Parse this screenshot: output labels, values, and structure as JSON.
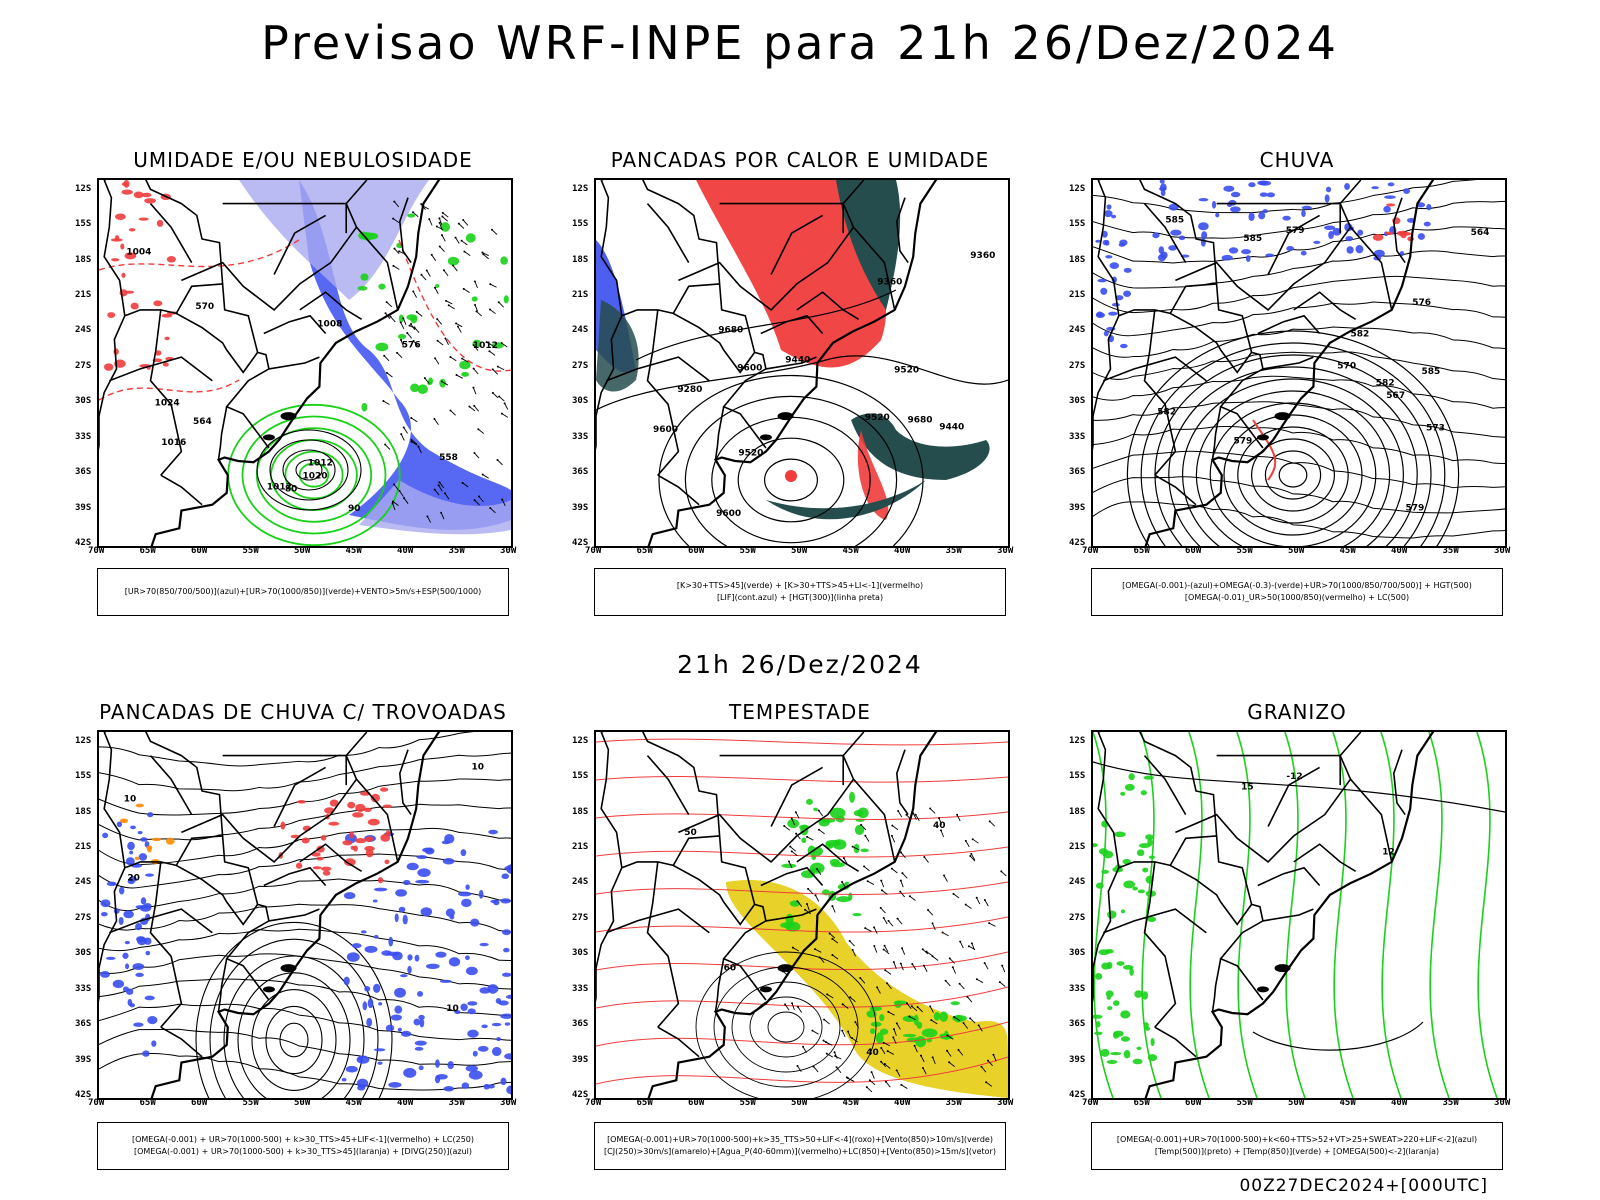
{
  "title": "Previsao WRF-INPE  para 21h 26/Dez/2024",
  "subtitle": "21h 26/Dez/2024",
  "footer": "00Z27DEC2024+[000UTC]",
  "lat_labels": [
    "12S",
    "15S",
    "18S",
    "21S",
    "24S",
    "27S",
    "30S",
    "33S",
    "36S",
    "39S",
    "42S"
  ],
  "lon_labels": [
    "70W",
    "65W",
    "60W",
    "55W",
    "50W",
    "45W",
    "40W",
    "35W",
    "30W"
  ],
  "colors": {
    "blue": "#3a4ef0",
    "green": "#1ad11a",
    "red": "#f03c3c",
    "darkteal": "#264d4d",
    "yellow": "#e8d22a",
    "lightblue": "#aaaaf0"
  },
  "panels": [
    {
      "title": "UMIDADE E/OU NEBULOSIDADE",
      "legend": [
        "[UR>70(850/700/500)](azul)+[UR>70(1000/850)](verde)+VENTO>5m/s+ESP(500/1000)"
      ],
      "contour_labels": [
        "1012",
        "1012",
        "1008",
        "1004",
        "1012",
        "1016",
        "1020",
        "1024",
        "576",
        "570",
        "564",
        "558",
        "80",
        "90"
      ]
    },
    {
      "title": "PANCADAS POR CALOR E UMIDADE",
      "legend": [
        "[K>30+TTS>45](verde) + [K>30+TTS>45+LI<-1](vermelho)",
        "[LIF](cont.azul) + [HGT(300)](linha preta)"
      ],
      "contour_labels": [
        "9600",
        "9520",
        "9600",
        "9520",
        "9440",
        "9360",
        "9280",
        "9360",
        "9520",
        "9600",
        "9680",
        "9680",
        "9440"
      ]
    },
    {
      "title": "CHUVA",
      "legend": [
        "[OMEGA(-0.001)-(azul)+OMEGA(-0.3)-(verde)+UR>70(1000/850/700/500)] + HGT(500)",
        "[OMEGA(-0.01)_UR>50(1000/850)(vermelho) + LC(500)"
      ],
      "contour_labels": [
        "585",
        "585",
        "582",
        "582",
        "579",
        "579",
        "576",
        "573",
        "567",
        "564",
        "585",
        "582",
        "579",
        "570"
      ]
    },
    {
      "title": "PANCADAS DE CHUVA C/ TROVOADAS",
      "legend": [
        "[OMEGA(-0.001) + UR>70(1000-500) + k>30_TTS>45+LIF<-1](vermelho) + LC(250)",
        "[OMEGA(-0.001) + UR>70(1000-500) + k>30_TTS>45](laranja) + [DIVG(250)](azul)"
      ],
      "contour_labels": [
        "10",
        "20",
        "10",
        "10"
      ]
    },
    {
      "title": "TEMPESTADE",
      "legend": [
        "[OMEGA(-0.001)+UR>70(1000-500)+k>35_TTS>50+LIF<-4](roxo)+[Vento(850)>10m/s](verde)",
        "[CJ(250)>30m/s](amarelo)+[Agua_P(40-60mm)](vermelho)+LC(850)+[Vento(850)>15m/s](vetor)"
      ],
      "contour_labels": [
        "40",
        "50",
        "40",
        "60"
      ]
    },
    {
      "title": "GRANIZO",
      "legend": [
        "[OMEGA(-0.001)+UR>70(1000-500)+k<60+TTS>52+VT>25+SWEAT>220+LIF<-2](azul)",
        "[Temp(500)](preto) + [Temp(850)](verde) + [OMEGA(500)<-2](laranja)"
      ],
      "contour_labels": [
        "12",
        "15",
        "-12"
      ]
    }
  ]
}
